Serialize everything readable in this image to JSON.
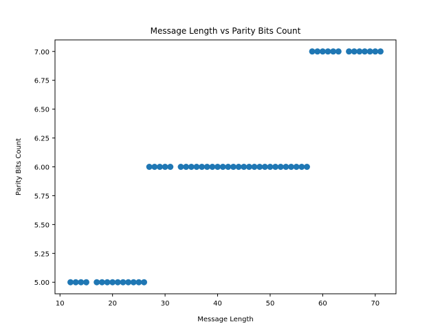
{
  "chart_data": {
    "type": "scatter",
    "title": "Message Length vs Parity Bits Count",
    "xlabel": "Message Length",
    "ylabel": "Parity Bits Count",
    "xlim": [
      9.05,
      73.95
    ],
    "ylim": [
      4.9,
      7.1
    ],
    "xticks": [
      {
        "value": 10,
        "label": "10"
      },
      {
        "value": 20,
        "label": "20"
      },
      {
        "value": 30,
        "label": "30"
      },
      {
        "value": 40,
        "label": "40"
      },
      {
        "value": 50,
        "label": "50"
      },
      {
        "value": 60,
        "label": "60"
      },
      {
        "value": 70,
        "label": "70"
      }
    ],
    "yticks": [
      {
        "value": 5.0,
        "label": "5.00"
      },
      {
        "value": 5.25,
        "label": "5.25"
      },
      {
        "value": 5.5,
        "label": "5.50"
      },
      {
        "value": 5.75,
        "label": "5.75"
      },
      {
        "value": 6.0,
        "label": "6.00"
      },
      {
        "value": 6.25,
        "label": "6.25"
      },
      {
        "value": 6.5,
        "label": "6.50"
      },
      {
        "value": 6.75,
        "label": "6.75"
      },
      {
        "value": 7.0,
        "label": "7.00"
      }
    ],
    "grid": false,
    "legend": "none",
    "marker_color": "#1f77b4",
    "series": [
      {
        "x": [
          12,
          13,
          14,
          15,
          17,
          18,
          19,
          20,
          21,
          22,
          23,
          24,
          25,
          26,
          27,
          28,
          29,
          30,
          31,
          33,
          34,
          35,
          36,
          37,
          38,
          39,
          40,
          41,
          42,
          43,
          44,
          45,
          46,
          47,
          48,
          49,
          50,
          51,
          52,
          53,
          54,
          55,
          56,
          57,
          58,
          59,
          60,
          61,
          62,
          63,
          65,
          66,
          67,
          68,
          69,
          70,
          71
        ],
        "y": [
          5,
          5,
          5,
          5,
          5,
          5,
          5,
          5,
          5,
          5,
          5,
          5,
          5,
          5,
          6,
          6,
          6,
          6,
          6,
          6,
          6,
          6,
          6,
          6,
          6,
          6,
          6,
          6,
          6,
          6,
          6,
          6,
          6,
          6,
          6,
          6,
          6,
          6,
          6,
          6,
          6,
          6,
          6,
          6,
          7,
          7,
          7,
          7,
          7,
          7,
          7,
          7,
          7,
          7,
          7,
          7,
          7
        ]
      }
    ]
  }
}
